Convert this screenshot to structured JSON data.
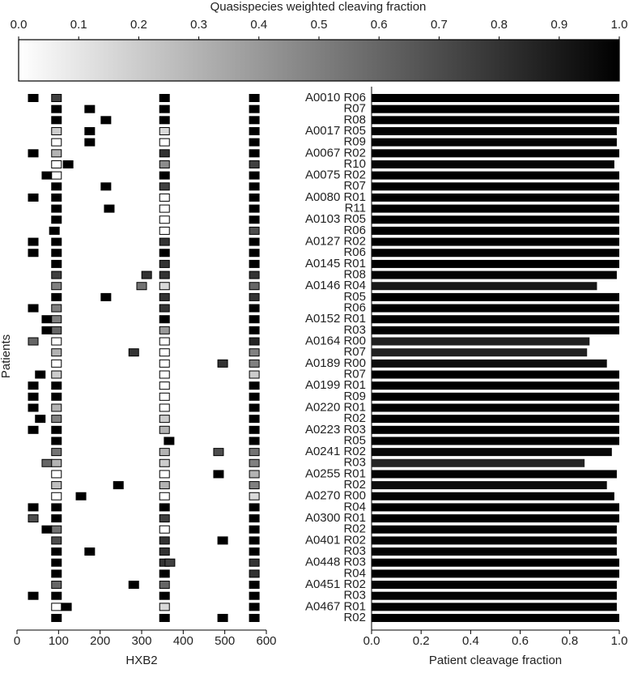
{
  "colorbar": {
    "label": "Quasispecies weighted cleaving fraction",
    "lim": [
      0,
      1
    ],
    "colors": [
      "#ffffff",
      "#000000"
    ],
    "ticks": [
      {
        "value": 0,
        "label": "0.0"
      },
      0.1,
      0.2,
      0.3,
      0.4,
      0.5,
      0.6,
      0.7,
      0.8,
      0.9,
      {
        "value": 1,
        "label": "1.0"
      }
    ]
  },
  "chart_data": [
    {
      "type": "scatter",
      "xlabel": "HXB2",
      "ylabel": "Patients",
      "xlim": [
        0,
        600
      ],
      "xticks": [
        0,
        100,
        200,
        300,
        400,
        500,
        600
      ],
      "rows": [
        {
          "x": [
            39,
            95,
            355,
            571
          ],
          "values": [
            1,
            0.75,
            1,
            1
          ]
        },
        {
          "x": [
            95,
            175,
            355,
            571
          ],
          "values": [
            1,
            1,
            1,
            1
          ]
        },
        {
          "x": [
            95,
            214,
            355,
            571
          ],
          "values": [
            1,
            1,
            1,
            1
          ]
        },
        {
          "x": [
            95,
            175,
            355,
            571
          ],
          "values": [
            0.2,
            1,
            0.15,
            1
          ]
        },
        {
          "x": [
            95,
            175,
            355,
            571
          ],
          "values": [
            0,
            1,
            0,
            1
          ]
        },
        {
          "x": [
            39,
            95,
            355,
            571
          ],
          "values": [
            1,
            0.3,
            0.8,
            1
          ]
        },
        {
          "x": [
            95,
            123,
            355,
            571
          ],
          "values": [
            0,
            1,
            0.45,
            0.75
          ]
        },
        {
          "x": [
            72,
            95,
            355,
            571
          ],
          "values": [
            1,
            0,
            1,
            1
          ]
        },
        {
          "x": [
            95,
            214,
            355,
            571
          ],
          "values": [
            1,
            1,
            0.75,
            1
          ]
        },
        {
          "x": [
            39,
            95,
            355,
            571
          ],
          "values": [
            1,
            1,
            0,
            1
          ]
        },
        {
          "x": [
            95,
            222,
            355,
            571
          ],
          "values": [
            1,
            1,
            0,
            1
          ]
        },
        {
          "x": [
            95,
            355,
            571
          ],
          "values": [
            1,
            0,
            1
          ]
        },
        {
          "x": [
            90,
            355,
            571
          ],
          "values": [
            1,
            0,
            0.7
          ]
        },
        {
          "x": [
            39,
            95,
            355,
            571
          ],
          "values": [
            1,
            1,
            0.8,
            1
          ]
        },
        {
          "x": [
            39,
            95,
            355,
            571
          ],
          "values": [
            1,
            1,
            1,
            1
          ]
        },
        {
          "x": [
            95,
            355,
            571
          ],
          "values": [
            1,
            0.8,
            1
          ]
        },
        {
          "x": [
            95,
            312,
            355,
            571
          ],
          "values": [
            0.75,
            0.8,
            0.8,
            0.8
          ]
        },
        {
          "x": [
            95,
            300,
            355,
            571
          ],
          "values": [
            0.5,
            0.55,
            0.15,
            0.6
          ]
        },
        {
          "x": [
            95,
            214,
            355,
            571
          ],
          "values": [
            1,
            1,
            0.8,
            0.8
          ]
        },
        {
          "x": [
            39,
            95,
            355,
            571
          ],
          "values": [
            1,
            0.5,
            0.8,
            1
          ]
        },
        {
          "x": [
            72,
            95,
            355,
            571
          ],
          "values": [
            1,
            0.5,
            1,
            1
          ]
        },
        {
          "x": [
            72,
            95,
            355,
            571
          ],
          "values": [
            1,
            0.6,
            0.4,
            1
          ]
        },
        {
          "x": [
            39,
            95,
            355,
            571
          ],
          "values": [
            0.6,
            0,
            0,
            0.85
          ]
        },
        {
          "x": [
            95,
            281,
            355,
            571
          ],
          "values": [
            0.3,
            0.8,
            0,
            0.5
          ]
        },
        {
          "x": [
            95,
            355,
            495,
            571
          ],
          "values": [
            0,
            0,
            0.8,
            0.5
          ]
        },
        {
          "x": [
            56,
            95,
            355,
            571
          ],
          "values": [
            1,
            0.2,
            0,
            0.2
          ]
        },
        {
          "x": [
            39,
            95,
            355,
            571
          ],
          "values": [
            1,
            1,
            0,
            1
          ]
        },
        {
          "x": [
            39,
            95,
            355,
            571
          ],
          "values": [
            1,
            1,
            0,
            1
          ]
        },
        {
          "x": [
            39,
            95,
            355,
            571
          ],
          "values": [
            1,
            0.3,
            0,
            1
          ]
        },
        {
          "x": [
            56,
            95,
            355,
            571
          ],
          "values": [
            1,
            0.5,
            0.2,
            1
          ]
        },
        {
          "x": [
            39,
            95,
            355,
            571
          ],
          "values": [
            1,
            1,
            0.3,
            1
          ]
        },
        {
          "x": [
            95,
            366,
            571
          ],
          "values": [
            1,
            1,
            1
          ]
        },
        {
          "x": [
            95,
            355,
            485,
            571
          ],
          "values": [
            0.55,
            0.3,
            0.7,
            0.55
          ]
        },
        {
          "x": [
            72,
            95,
            355,
            571
          ],
          "values": [
            0.6,
            0.3,
            0.2,
            0.5
          ]
        },
        {
          "x": [
            95,
            355,
            485,
            571
          ],
          "values": [
            0,
            0,
            1,
            0.3
          ]
        },
        {
          "x": [
            95,
            244,
            355,
            571
          ],
          "values": [
            0.25,
            1,
            0.3,
            0.5
          ]
        },
        {
          "x": [
            95,
            154,
            355,
            571
          ],
          "values": [
            0,
            1,
            0,
            0.15
          ]
        },
        {
          "x": [
            39,
            95,
            355,
            571
          ],
          "values": [
            1,
            1,
            1,
            1
          ]
        },
        {
          "x": [
            39,
            95,
            355,
            571
          ],
          "values": [
            0.7,
            1,
            0.75,
            1
          ]
        },
        {
          "x": [
            72,
            95,
            355,
            571
          ],
          "values": [
            1,
            0.55,
            0,
            1
          ]
        },
        {
          "x": [
            95,
            355,
            495,
            571
          ],
          "values": [
            0.7,
            0.8,
            1,
            1
          ]
        },
        {
          "x": [
            95,
            175,
            355,
            571
          ],
          "values": [
            1,
            1,
            0.8,
            1
          ]
        },
        {
          "x": [
            95,
            355,
            368,
            571
          ],
          "values": [
            1,
            0.8,
            0.75,
            0.8
          ]
        },
        {
          "x": [
            95,
            355,
            571
          ],
          "values": [
            1,
            1,
            0.8
          ]
        },
        {
          "x": [
            95,
            281,
            355,
            571
          ],
          "values": [
            0.6,
            1,
            0.6,
            1
          ]
        },
        {
          "x": [
            39,
            95,
            355,
            571
          ],
          "values": [
            1,
            1,
            1,
            1
          ]
        },
        {
          "x": [
            95,
            119,
            355,
            571
          ],
          "values": [
            0,
            1,
            0.15,
            1
          ]
        },
        {
          "x": [
            95,
            355,
            495,
            571
          ],
          "values": [
            1,
            1,
            1,
            1
          ]
        }
      ]
    },
    {
      "type": "bar",
      "xlabel": "Patient cleavage fraction",
      "xlim": [
        0,
        1
      ],
      "xticks": [
        {
          "value": 0,
          "label": "0.0"
        },
        0.2,
        0.4,
        0.6,
        0.8,
        {
          "value": 1,
          "label": "1.0"
        }
      ],
      "categories": [
        "A0010 R06",
        "R07",
        "R08",
        "A0017 R05",
        "R09",
        "A0067 R02",
        "R10",
        "A0075 R02",
        "R07",
        "A0080 R01",
        "R11",
        "A0103 R05",
        "R06",
        "A0127 R02",
        "R06",
        "A0145 R01",
        "R08",
        "A0146 R04",
        "R05",
        "R06",
        "A0152 R01",
        "R03",
        "A0164 R00",
        "R07",
        "A0189 R00",
        "R07",
        "A0199 R01",
        "R09",
        "A0220 R01",
        "R02",
        "A0223 R03",
        "R05",
        "A0241 R02",
        "R03",
        "A0255 R01",
        "R02",
        "A0270 R00",
        "R04",
        "A0300 R01",
        "R02",
        "A0401 R02",
        "R03",
        "A0448 R03",
        "R04",
        "A0451 R02",
        "R03",
        "A0467 R01",
        "R02"
      ],
      "values": [
        1,
        1,
        1,
        0.99,
        0.99,
        1,
        0.98,
        1,
        1,
        1,
        1,
        1,
        1,
        1,
        1,
        1,
        0.99,
        0.91,
        1,
        1,
        1,
        1,
        0.88,
        0.87,
        0.95,
        1,
        1,
        1,
        1,
        1,
        1,
        1,
        0.97,
        0.86,
        0.99,
        0.95,
        0.98,
        1,
        1,
        0.99,
        0.99,
        0.99,
        1,
        1,
        0.99,
        0.99,
        0.99,
        1
      ]
    }
  ]
}
